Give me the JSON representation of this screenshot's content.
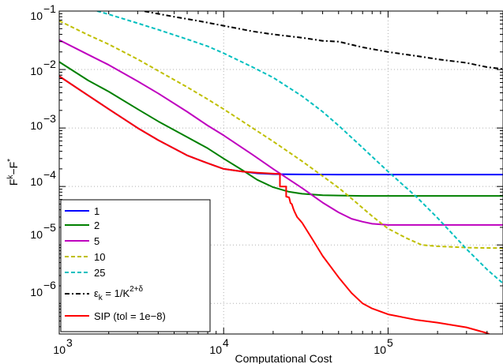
{
  "chart_data": {
    "type": "line",
    "xlabel": "Computational Cost",
    "ylabel_main": "F",
    "ylabel_sup1": "k",
    "ylabel_mid": "−F",
    "ylabel_sup2": "*",
    "xscale": "log",
    "yscale": "log",
    "xlim": [
      1000,
      500000
    ],
    "ylim": [
      3e-07,
      0.1
    ],
    "grid": true,
    "legend_position": "bottom-left",
    "x_ticks": [
      {
        "base": "10",
        "exp": "3"
      },
      {
        "base": "10",
        "exp": "4"
      },
      {
        "base": "10",
        "exp": "5"
      }
    ],
    "y_ticks": [
      {
        "base": "10",
        "exp": "−6"
      },
      {
        "base": "10",
        "exp": "−5"
      },
      {
        "base": "10",
        "exp": "−4"
      },
      {
        "base": "10",
        "exp": "−3"
      },
      {
        "base": "10",
        "exp": "−2"
      },
      {
        "base": "10",
        "exp": "−1"
      }
    ],
    "series": [
      {
        "name": "1",
        "color": "#0000ff",
        "dash": "solid",
        "x": [
          1000,
          1500,
          2000,
          3000,
          4000,
          6000,
          8000,
          10000,
          13000,
          16000,
          20000,
          25000,
          30000,
          50000,
          100000,
          200000,
          500000
        ],
        "y": [
          0.0077,
          0.0036,
          0.0021,
          0.001,
          0.00062,
          0.00034,
          0.00025,
          0.0002,
          0.00018,
          0.000168,
          0.000163,
          0.000162,
          0.000161,
          0.00016,
          0.00016,
          0.00016,
          0.00016
        ]
      },
      {
        "name": "2",
        "color": "#008000",
        "dash": "solid",
        "x": [
          1000,
          1500,
          2000,
          3000,
          4000,
          6000,
          8000,
          10000,
          13000,
          16000,
          20000,
          25000,
          30000,
          40000,
          50000,
          70000,
          100000,
          200000,
          500000
        ],
        "y": [
          0.0135,
          0.0065,
          0.0042,
          0.0021,
          0.0013,
          0.0007,
          0.00045,
          0.0003,
          0.00019,
          0.00013,
          9.7e-05,
          8.1e-05,
          7.5e-05,
          7.1e-05,
          7e-05,
          6.9e-05,
          6.9e-05,
          6.9e-05,
          6.9e-05
        ]
      },
      {
        "name": "5",
        "color": "#bf00bf",
        "dash": "solid",
        "x": [
          1000,
          1500,
          2000,
          3000,
          4000,
          6000,
          8000,
          10000,
          15000,
          20000,
          30000,
          40000,
          50000,
          60000,
          70000,
          80000,
          100000,
          150000,
          200000,
          500000
        ],
        "y": [
          0.032,
          0.018,
          0.012,
          0.0063,
          0.0039,
          0.0019,
          0.0011,
          0.00075,
          0.00035,
          0.0002,
          9.4e-05,
          5.3e-05,
          3.6e-05,
          2.8e-05,
          2.5e-05,
          2.3e-05,
          2.2e-05,
          2.2e-05,
          2.2e-05,
          2.2e-05
        ]
      },
      {
        "name": "10",
        "color": "#bfbf00",
        "dash": "dash",
        "x": [
          1000,
          1500,
          2000,
          3000,
          4000,
          6000,
          8000,
          10000,
          15000,
          20000,
          30000,
          40000,
          50000,
          60000,
          80000,
          100000,
          130000,
          160000,
          200000,
          300000,
          500000
        ],
        "y": [
          0.068,
          0.039,
          0.027,
          0.015,
          0.0095,
          0.005,
          0.0031,
          0.0021,
          0.001,
          0.00059,
          0.00027,
          0.00015,
          9.5e-05,
          6.2e-05,
          3.1e-05,
          1.9e-05,
          1.3e-05,
          1e-05,
          9.5e-06,
          9e-06,
          8.8e-06
        ]
      },
      {
        "name": "25",
        "color": "#00bfbf",
        "dash": "dash",
        "x": [
          1700,
          2000,
          3000,
          4000,
          6000,
          8000,
          10000,
          15000,
          20000,
          30000,
          40000,
          50000,
          70000,
          100000,
          150000,
          200000,
          300000,
          400000,
          500000
        ],
        "y": [
          0.1,
          0.088,
          0.062,
          0.048,
          0.033,
          0.025,
          0.019,
          0.011,
          0.0073,
          0.0035,
          0.0019,
          0.0011,
          0.00046,
          0.00018,
          6.5e-05,
          2.9e-05,
          8.5e-06,
          3.8e-06,
          2.2e-06
        ]
      },
      {
        "name": "εₖ = 1/K^(2+δ)",
        "color": "#000000",
        "dash": "dashdot",
        "x": [
          3300,
          5000,
          7000,
          10000,
          15000,
          20000,
          30000,
          40000,
          50000,
          70000,
          100000,
          150000,
          200000,
          300000,
          400000,
          500000
        ],
        "y": [
          0.099,
          0.08,
          0.068,
          0.056,
          0.045,
          0.04,
          0.035,
          0.031,
          0.03,
          0.024,
          0.02,
          0.017,
          0.015,
          0.013,
          0.011,
          0.0102
        ]
      },
      {
        "name": "SIP (tol = 1e−8)",
        "color": "#ff0000",
        "dash": "solid",
        "x": [
          1000,
          1500,
          2000,
          3000,
          4000,
          6000,
          8000,
          10000,
          13000,
          16000,
          20000,
          22000,
          22000,
          24000,
          24000,
          25000,
          25500,
          26000,
          26500,
          27000,
          28000,
          30000,
          35000,
          40000,
          50000,
          60000,
          70000,
          80000,
          100000,
          150000,
          200000,
          300000,
          400000,
          500000
        ],
        "y": [
          0.0077,
          0.0036,
          0.0021,
          0.001,
          0.00062,
          0.00034,
          0.00025,
          0.0002,
          0.00018,
          0.000172,
          0.000166,
          0.000164,
          0.0001,
          0.0001,
          6.7e-05,
          6.5e-05,
          5.2e-05,
          5e-05,
          4.2e-05,
          3.7e-05,
          3e-05,
          2.4e-05,
          1.2e-05,
          6.5e-06,
          2.8e-06,
          1.5e-06,
          1e-06,
          8.2e-07,
          6.5e-07,
          5.2e-07,
          4.7e-07,
          3.9e-07,
          3.1e-07,
          2.3e-07
        ]
      }
    ]
  },
  "legend": [
    {
      "label": "1"
    },
    {
      "label": "2"
    },
    {
      "label": "5"
    },
    {
      "label": "10"
    },
    {
      "label": "25"
    },
    {
      "label_main": "ε",
      "label_sub": "k",
      "label_mid": " = 1/K",
      "label_sup": "2+δ"
    },
    {
      "label": "SIP (tol = 1e−8)"
    }
  ]
}
